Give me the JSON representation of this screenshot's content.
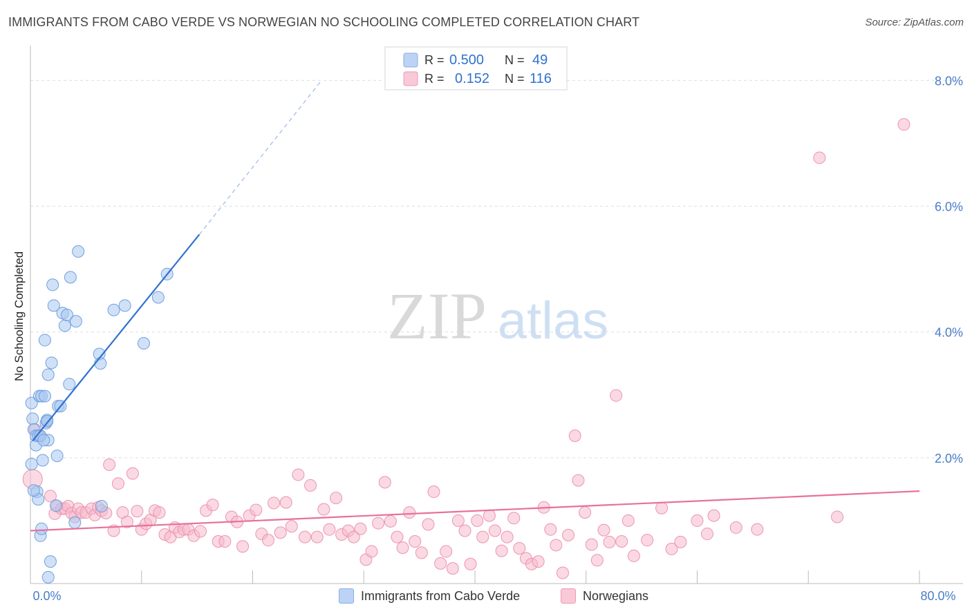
{
  "title": "IMMIGRANTS FROM CABO VERDE VS NORWEGIAN NO SCHOOLING COMPLETED CORRELATION CHART",
  "source": "Source: ZipAtlas.com",
  "watermark": {
    "zip": "ZIP",
    "atlas": "atlas"
  },
  "colors": {
    "blue_fill": "#a9c8f0",
    "blue_stroke": "#6f9fe0",
    "blue_line": "#2f72d0",
    "pink_fill": "#f6b9cc",
    "pink_stroke": "#ec93b0",
    "pink_line": "#e8709a",
    "tick_color": "#4a7cc7",
    "grid": "#dddddd"
  },
  "legend": {
    "rows": [
      {
        "r_label": "R =",
        "r_value": "0.500",
        "n_label": "N =",
        "n_value": "49"
      },
      {
        "r_label": "R =",
        "r_value": "0.152",
        "n_label": "N =",
        "n_value": "116"
      }
    ]
  },
  "bottom_legend": {
    "blue": "Immigrants from Cabo Verde",
    "pink": "Norwegians"
  },
  "chart_data": {
    "type": "scatter",
    "title": "IMMIGRANTS FROM CABO VERDE VS NORWEGIAN NO SCHOOLING COMPLETED CORRELATION CHART",
    "xlabel": "",
    "ylabel": "No Schooling Completed",
    "xlim": [
      0,
      80
    ],
    "ylim": [
      0,
      8.4
    ],
    "x_tick_labels": [
      "0.0%",
      "80.0%"
    ],
    "y_ticks": [
      2,
      4,
      6,
      8
    ],
    "y_tick_labels": [
      "2.0%",
      "4.0%",
      "6.0%",
      "8.0%"
    ],
    "grid": true,
    "series": [
      {
        "name": "Immigrants from Cabo Verde",
        "color": "blue",
        "r": 0.5,
        "n": 49,
        "trend": {
          "x": [
            0.2,
            15.2
          ],
          "y": [
            2.27,
            5.55
          ],
          "dashed_to": [
            26.2,
            8.0
          ]
        },
        "points": [
          [
            0.1,
            2.87
          ],
          [
            0.2,
            2.62
          ],
          [
            0.3,
            2.45
          ],
          [
            0.5,
            2.35
          ],
          [
            0.1,
            1.9
          ],
          [
            0.6,
            1.46
          ],
          [
            0.7,
            1.34
          ],
          [
            0.9,
            0.76
          ],
          [
            1.0,
            0.87
          ],
          [
            1.8,
            0.35
          ],
          [
            1.6,
            0.1
          ],
          [
            0.5,
            2.2
          ],
          [
            0.7,
            2.35
          ],
          [
            0.8,
            2.98
          ],
          [
            1.0,
            2.98
          ],
          [
            1.1,
            1.96
          ],
          [
            1.3,
            2.98
          ],
          [
            1.3,
            3.87
          ],
          [
            1.4,
            2.55
          ],
          [
            1.5,
            2.6
          ],
          [
            1.6,
            3.32
          ],
          [
            1.6,
            2.28
          ],
          [
            1.9,
            3.51
          ],
          [
            2.0,
            4.75
          ],
          [
            2.1,
            4.42
          ],
          [
            2.3,
            1.24
          ],
          [
            2.4,
            2.03
          ],
          [
            2.5,
            2.82
          ],
          [
            2.7,
            2.82
          ],
          [
            2.9,
            4.3
          ],
          [
            3.1,
            4.1
          ],
          [
            3.3,
            4.27
          ],
          [
            3.5,
            3.17
          ],
          [
            3.6,
            4.87
          ],
          [
            4.0,
            0.97
          ],
          [
            4.1,
            4.17
          ],
          [
            4.3,
            5.28
          ],
          [
            6.2,
            3.65
          ],
          [
            6.3,
            3.5
          ],
          [
            6.4,
            1.23
          ],
          [
            7.5,
            4.35
          ],
          [
            8.5,
            4.42
          ],
          [
            10.2,
            3.82
          ],
          [
            11.5,
            4.55
          ],
          [
            12.3,
            4.92
          ],
          [
            0.3,
            1.48
          ],
          [
            0.9,
            2.35
          ],
          [
            1.2,
            2.28
          ],
          [
            1.5,
            2.58
          ]
        ]
      },
      {
        "name": "Norwegians",
        "color": "pink",
        "r": 0.152,
        "n": 116,
        "trend": {
          "x": [
            0,
            80
          ],
          "y": [
            0.84,
            1.47
          ]
        },
        "points": [
          [
            0.2,
            1.66
          ],
          [
            0.4,
            2.45
          ],
          [
            0.8,
            2.35
          ],
          [
            1.5,
            2.58
          ],
          [
            1.8,
            1.39
          ],
          [
            2.2,
            1.11
          ],
          [
            2.4,
            1.23
          ],
          [
            2.8,
            1.19
          ],
          [
            3.1,
            1.19
          ],
          [
            3.4,
            1.23
          ],
          [
            3.7,
            1.12
          ],
          [
            4.0,
            1.06
          ],
          [
            4.3,
            1.19
          ],
          [
            4.6,
            1.13
          ],
          [
            5.0,
            1.13
          ],
          [
            5.5,
            1.19
          ],
          [
            5.8,
            1.09
          ],
          [
            6.1,
            1.21
          ],
          [
            6.4,
            1.16
          ],
          [
            6.8,
            1.12
          ],
          [
            7.1,
            1.89
          ],
          [
            7.5,
            0.84
          ],
          [
            7.9,
            1.59
          ],
          [
            8.3,
            1.13
          ],
          [
            8.7,
            0.98
          ],
          [
            9.2,
            1.75
          ],
          [
            9.6,
            1.15
          ],
          [
            10.0,
            0.86
          ],
          [
            10.4,
            0.95
          ],
          [
            10.8,
            1.01
          ],
          [
            11.2,
            1.16
          ],
          [
            11.6,
            1.13
          ],
          [
            12.1,
            0.78
          ],
          [
            12.6,
            0.74
          ],
          [
            13.0,
            0.89
          ],
          [
            13.4,
            0.82
          ],
          [
            13.8,
            0.86
          ],
          [
            14.2,
            0.86
          ],
          [
            14.7,
            0.76
          ],
          [
            15.3,
            0.83
          ],
          [
            15.8,
            1.16
          ],
          [
            16.4,
            1.25
          ],
          [
            16.9,
            0.67
          ],
          [
            17.5,
            0.67
          ],
          [
            18.1,
            1.06
          ],
          [
            18.6,
            0.98
          ],
          [
            19.1,
            0.59
          ],
          [
            19.7,
            1.08
          ],
          [
            20.3,
            1.17
          ],
          [
            20.8,
            0.79
          ],
          [
            21.4,
            0.69
          ],
          [
            21.9,
            1.28
          ],
          [
            22.5,
            0.81
          ],
          [
            23.0,
            1.29
          ],
          [
            23.5,
            0.91
          ],
          [
            24.1,
            1.73
          ],
          [
            24.7,
            0.74
          ],
          [
            25.2,
            1.56
          ],
          [
            25.8,
            0.74
          ],
          [
            26.4,
            1.18
          ],
          [
            26.9,
            0.86
          ],
          [
            27.5,
            1.36
          ],
          [
            28.0,
            0.78
          ],
          [
            28.6,
            0.84
          ],
          [
            29.1,
            0.74
          ],
          [
            29.7,
            0.87
          ],
          [
            30.2,
            0.38
          ],
          [
            30.7,
            0.51
          ],
          [
            31.3,
            0.96
          ],
          [
            31.9,
            1.61
          ],
          [
            32.4,
            0.99
          ],
          [
            33.0,
            0.74
          ],
          [
            33.5,
            0.57
          ],
          [
            34.1,
            1.13
          ],
          [
            34.6,
            0.67
          ],
          [
            35.2,
            0.49
          ],
          [
            35.8,
            0.94
          ],
          [
            36.3,
            1.46
          ],
          [
            36.9,
            0.32
          ],
          [
            37.4,
            0.51
          ],
          [
            38.0,
            0.24
          ],
          [
            38.5,
            1.0
          ],
          [
            39.1,
            0.84
          ],
          [
            39.6,
            0.31
          ],
          [
            40.2,
            1.0
          ],
          [
            40.7,
            0.74
          ],
          [
            41.3,
            1.08
          ],
          [
            41.8,
            0.84
          ],
          [
            42.4,
            0.52
          ],
          [
            42.9,
            0.74
          ],
          [
            43.5,
            1.04
          ],
          [
            44.0,
            0.56
          ],
          [
            44.6,
            0.4
          ],
          [
            45.1,
            0.31
          ],
          [
            45.7,
            0.35
          ],
          [
            46.2,
            1.21
          ],
          [
            46.8,
            0.86
          ],
          [
            47.3,
            0.61
          ],
          [
            47.9,
            0.17
          ],
          [
            48.4,
            0.77
          ],
          [
            49.0,
            2.35
          ],
          [
            49.3,
            1.64
          ],
          [
            49.9,
            1.13
          ],
          [
            50.5,
            0.62
          ],
          [
            51.0,
            0.37
          ],
          [
            51.6,
            0.85
          ],
          [
            52.1,
            0.66
          ],
          [
            52.7,
            2.99
          ],
          [
            53.2,
            0.67
          ],
          [
            53.8,
            1.0
          ],
          [
            54.3,
            0.44
          ],
          [
            55.5,
            0.69
          ],
          [
            56.8,
            1.2
          ],
          [
            57.7,
            0.55
          ],
          [
            58.5,
            0.66
          ],
          [
            60.0,
            1.0
          ],
          [
            60.9,
            0.79
          ],
          [
            61.5,
            1.08
          ],
          [
            63.5,
            0.89
          ],
          [
            65.4,
            0.86
          ],
          [
            71.0,
            6.77
          ],
          [
            72.6,
            1.06
          ],
          [
            78.6,
            7.3
          ]
        ]
      }
    ]
  }
}
